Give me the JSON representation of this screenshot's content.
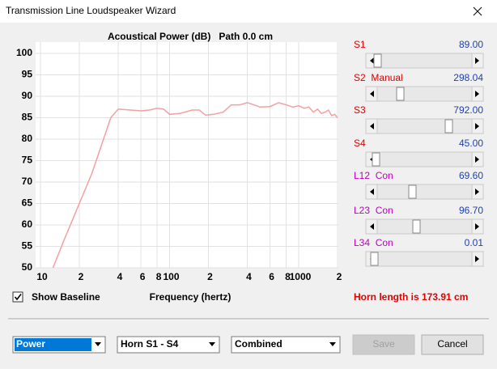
{
  "window": {
    "title": "Transmission Line Loudspeaker Wizard"
  },
  "chart_data": {
    "type": "line",
    "title": "Acoustical Power (dB)   Path 0.0 cm",
    "x_label": "Frequency (hertz)",
    "x_scale": "log",
    "grid": true,
    "xlim": [
      10,
      2000
    ],
    "ylim": [
      50,
      100
    ],
    "xticks": [
      10,
      {
        "value": 20,
        "label": "2"
      },
      {
        "value": 40,
        "label": "4"
      },
      {
        "value": 60,
        "label": "6"
      },
      {
        "value": 80,
        "label": "8"
      },
      100,
      {
        "value": 200,
        "label": "2"
      },
      {
        "value": 400,
        "label": "4"
      },
      {
        "value": 600,
        "label": "6"
      },
      {
        "value": 800,
        "label": "8"
      },
      1000,
      {
        "value": 2000,
        "label": "2"
      }
    ],
    "yticks": [
      50,
      55,
      60,
      65,
      70,
      75,
      80,
      85,
      90,
      95,
      100
    ],
    "x": [
      12.5,
      15,
      20,
      25,
      30,
      35,
      40,
      50,
      60,
      70,
      80,
      90,
      100,
      120,
      150,
      170,
      190,
      220,
      260,
      300,
      350,
      400,
      450,
      500,
      600,
      700,
      800,
      900,
      1000,
      1100,
      1200,
      1300,
      1400,
      1500,
      1600,
      1700,
      1800,
      1900,
      2000
    ],
    "series": [
      {
        "color": "#f4a0a0",
        "values": [
          50,
          56,
          65,
          72,
          79,
          85,
          87,
          86.8,
          86.6,
          86.8,
          87.2,
          87,
          85.8,
          86,
          86.8,
          86.8,
          85.6,
          85.8,
          86.3,
          88,
          88,
          88.5,
          88,
          87.5,
          87.6,
          88.5,
          88,
          87.5,
          87.8,
          87.2,
          87.5,
          86.3,
          87,
          86,
          86.3,
          86.8,
          85.5,
          85.8,
          85
        ]
      }
    ]
  },
  "controls": {
    "sliders": [
      {
        "label": "S1",
        "value": "89.00",
        "color": "#e00000"
      },
      {
        "label": "S2  Manual",
        "value": "298.04",
        "color": "#e00000"
      },
      {
        "label": "S3",
        "value": "792.00",
        "color": "#e00000"
      },
      {
        "label": "S4",
        "value": "45.00",
        "color": "#e00000"
      },
      {
        "label": "L12  Con",
        "value": "69.60",
        "color": "#c000c0"
      },
      {
        "label": "L23  Con",
        "value": "96.70",
        "color": "#c000c0"
      },
      {
        "label": "L34  Con",
        "value": "0.01",
        "color": "#c000c0"
      }
    ],
    "show_baseline": "Show Baseline",
    "horn_length": "Horn length is 173.91 cm",
    "dropdowns": [
      "Power",
      "Horn S1 - S4",
      "Combined"
    ],
    "buttons": [
      "Save",
      "Cancel"
    ]
  }
}
